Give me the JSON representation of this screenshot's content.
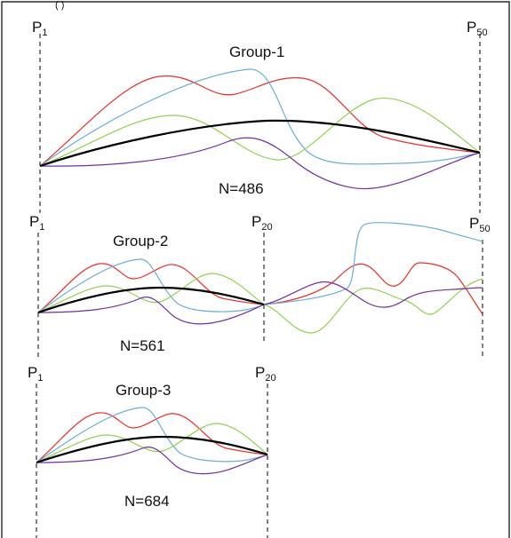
{
  "colors": {
    "red": "#e8302a",
    "blue": "#6aaed6",
    "green": "#92d050",
    "purple": "#7030a0",
    "black": "#000000"
  },
  "groups": [
    {
      "title": "Group-1",
      "n_label": "N=486",
      "markers": [
        {
          "base": "P",
          "sub": "1"
        },
        {
          "base": "P",
          "sub": "50"
        }
      ]
    },
    {
      "title": "Group-2",
      "n_label": "N=561",
      "markers": [
        {
          "base": "P",
          "sub": "1"
        },
        {
          "base": "P",
          "sub": "20"
        },
        {
          "base": "P",
          "sub": "50"
        }
      ]
    },
    {
      "title": "Group-3",
      "n_label": "N=684",
      "markers": [
        {
          "base": "P",
          "sub": "1"
        },
        {
          "base": "P",
          "sub": "20"
        }
      ]
    }
  ],
  "top_fragment": "(    )"
}
